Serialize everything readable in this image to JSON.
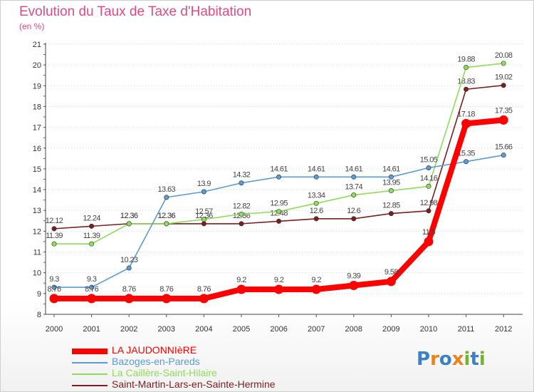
{
  "header": {
    "title": "Evolution du Taux de Taxe d'Habitation",
    "subtitle": "(en %)"
  },
  "logo": {
    "text": "Proxiti",
    "letters": [
      "P",
      "r",
      "o",
      "x",
      "i",
      "t",
      "i"
    ],
    "colors": [
      "#3b82c4",
      "#e8841e",
      "#3b82c4",
      "#e8841e",
      "#72b52b",
      "#3b82c4",
      "#72b52b"
    ]
  },
  "chart_data": {
    "type": "line",
    "x": [
      "2000",
      "2001",
      "2002",
      "2003",
      "2004",
      "2005",
      "2006",
      "2007",
      "2008",
      "2009",
      "2010",
      "2011",
      "2012"
    ],
    "y_ticks": [
      "8",
      "9",
      "10",
      "11",
      "12",
      "13",
      "14",
      "15",
      "16",
      "17",
      "18",
      "19",
      "20",
      "21"
    ],
    "ylim": [
      8,
      21
    ],
    "grid": "horizontal dotted",
    "legend_position": "bottom-left",
    "series": [
      {
        "name": "Saint-Martin-Lars-en-Sainte-Hermine",
        "color": "#7a1f1f",
        "values": [
          12.12,
          12.24,
          12.36,
          12.36,
          12.36,
          12.36,
          12.48,
          12.6,
          12.6,
          12.85,
          12.98,
          18.83,
          19.02
        ],
        "labels": [
          "12.12",
          "12.24",
          "12.36",
          "12.36",
          "12.36",
          "12.36",
          "12.48",
          "12.6",
          "12.6",
          "12.85",
          "12.98",
          "18.83",
          "19.02"
        ]
      },
      {
        "name": "La Caillère-Saint-Hilaire",
        "color": "#8fdc5c",
        "values": [
          11.39,
          11.39,
          12.36,
          12.36,
          12.57,
          12.82,
          12.95,
          13.34,
          13.74,
          13.95,
          14.16,
          19.88,
          20.08
        ],
        "labels": [
          "11.39",
          "11.39",
          "12.36",
          "12.36",
          "12.57",
          "12.82",
          "12.95",
          "13.34",
          "13.74",
          "13.95",
          "14.16",
          "19.88",
          "20.08"
        ]
      },
      {
        "name": "Bazoges-en-Pareds",
        "color": "#5b9bd5",
        "values": [
          9.3,
          9.3,
          10.23,
          13.63,
          13.9,
          14.32,
          14.61,
          14.61,
          14.61,
          14.61,
          15.05,
          15.35,
          15.66
        ],
        "labels": [
          "9.3",
          "9.3",
          "10.23",
          "13.63",
          "13.9",
          "14.32",
          "14.61",
          "14.61",
          "14.61",
          "14.61",
          "15.05",
          "15.35",
          "15.66"
        ]
      },
      {
        "name": "LA JAUDONNIèRE",
        "color": "#ff0000",
        "values": [
          8.76,
          8.76,
          8.76,
          8.76,
          8.76,
          9.2,
          9.2,
          9.2,
          9.39,
          9.58,
          11.5,
          17.18,
          17.35
        ],
        "labels": [
          "8.76",
          "8.76",
          "8.76",
          "8.76",
          "8.76",
          "9.2",
          "9.2",
          "9.2",
          "9.39",
          "9.58",
          "11.5",
          "17.18",
          "17.35"
        ]
      }
    ]
  },
  "legend": [
    {
      "label": "LA JAUDONNIèRE",
      "color": "#ff0000"
    },
    {
      "label": "Bazoges-en-Pareds",
      "color": "#5b9bd5"
    },
    {
      "label": "La Caillère-Saint-Hilaire",
      "color": "#8fdc5c"
    },
    {
      "label": "Saint-Martin-Lars-en-Sainte-Hermine",
      "color": "#7a1f1f"
    }
  ]
}
